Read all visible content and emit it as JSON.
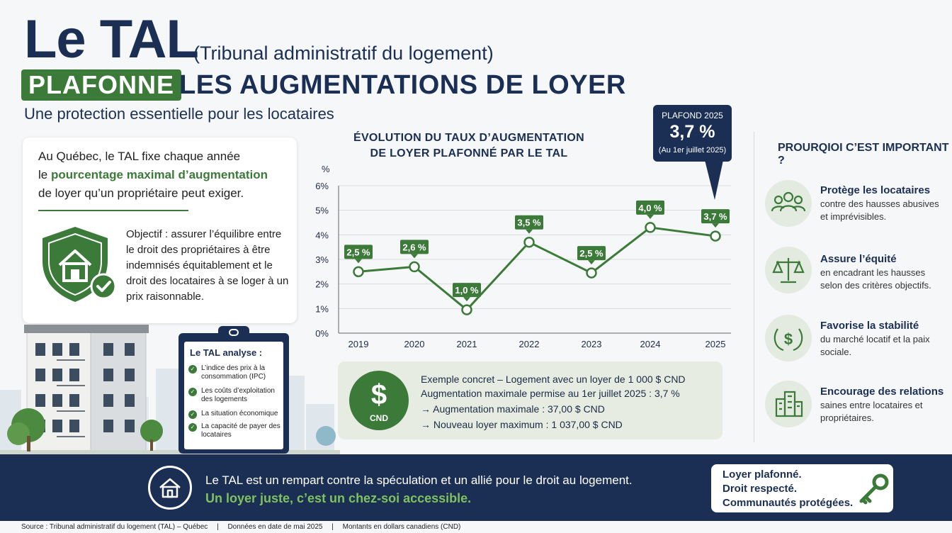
{
  "header": {
    "title_main": "Le TAL",
    "title_paren": "(Tribunal administratif du logement)",
    "title_highlight": "PLAFONNE",
    "title_rest": "LES AUGMENTATIONS DE LOYER",
    "subtitle": "Une protection essentielle pour les locataires"
  },
  "intro": {
    "line1": "Au Québec, le TAL fixe chaque année",
    "line2_pre": "le ",
    "line2_hl": "pourcentage maximal d’augmentation",
    "line3": "de loyer qu’un propriétaire peut exiger.",
    "objective": "Objectif : assurer l’équilibre entre le droit des propriétaires à être indemnisés équitablement et le droit des locataires à se loger à un prix raisonnable."
  },
  "clipboard": {
    "title": "Le TAL analyse :",
    "items": [
      "L’indice des prix à la consommation (IPC)",
      "Les coûts d’exploitation des logements",
      "La situation économique",
      "La capacité de payer des locataires"
    ]
  },
  "chart_data": {
    "type": "line",
    "title_line1": "ÉVOLUTION DU TAUX D’AUGMENTATION",
    "title_line2": "DE LOYER PLAFONNÉ PAR LE TAL",
    "ylabel": "%",
    "ylim": [
      0,
      6
    ],
    "yticks": [
      "0%",
      "1%",
      "2%",
      "3%",
      "4%",
      "5%",
      "6%"
    ],
    "categories": [
      "2019",
      "2020",
      "2021",
      "2022",
      "2023",
      "2024",
      "2025"
    ],
    "values": [
      2.5,
      2.6,
      1.0,
      3.5,
      2.5,
      4.0,
      3.7
    ],
    "data_labels": [
      "2,5 %",
      "2,6 %",
      "1,0 %",
      "3,5 %",
      "2,5 %",
      "4,0 %",
      "3,7 %"
    ],
    "point_values": [
      2.5,
      2.7,
      0.95,
      3.7,
      2.45,
      4.3,
      3.95
    ],
    "grid": true,
    "line_color": "#3c7a3a"
  },
  "plafond": {
    "title": "PLAFOND 2025",
    "value": "3,7 %",
    "date": "(Au 1er juillet 2025)"
  },
  "example": {
    "icon_symbol": "$",
    "icon_label": "CND",
    "line1": "Exemple concret – Logement avec un loyer de 1 000 $ CND",
    "line2": "Augmentation maximale permise au 1er juillet 2025 : 3,7 %",
    "line3": "→ Augmentation maximale : 37,00 $ CND",
    "line4": "→ Nouveau loyer maximum : 1 037,00 $ CND"
  },
  "importance": {
    "title": "PROURQIOI C’EST IMPORTANT ?",
    "items": [
      {
        "icon": "people-icon",
        "title": "Protège les locataires",
        "desc": "contre des hausses abusives et imprévisibles."
      },
      {
        "icon": "scales-icon",
        "title": "Assure l’équité",
        "desc": "en encadrant les hausses selon des critères objectifs."
      },
      {
        "icon": "dollar-laurel-icon",
        "title": "Favorise la stabilité",
        "desc": "du marché locatif et la paix sociale."
      },
      {
        "icon": "buildings-icon",
        "title": "Encourage des relations",
        "desc": "saines entre locataires et propriétaires."
      }
    ]
  },
  "band": {
    "line1": "Le TAL est un rempart contre la spéculation et un allié pour le droit au logement.",
    "line2": "Un loyer juste, c’est un chez-soi accessible.",
    "card": [
      "Loyer plafonné.",
      "Droit respecté.",
      "Communautés protégées."
    ]
  },
  "footer": {
    "source": "Source : Tribunal administratif du logement (TAL) – Québec",
    "sep": "|",
    "date": "Données en date de mai 2025",
    "currency": "Montants en dollars canadiens (CND)"
  },
  "colors": {
    "navy": "#1b2f55",
    "green": "#3c7a3a",
    "light_green": "#7fc15f"
  }
}
